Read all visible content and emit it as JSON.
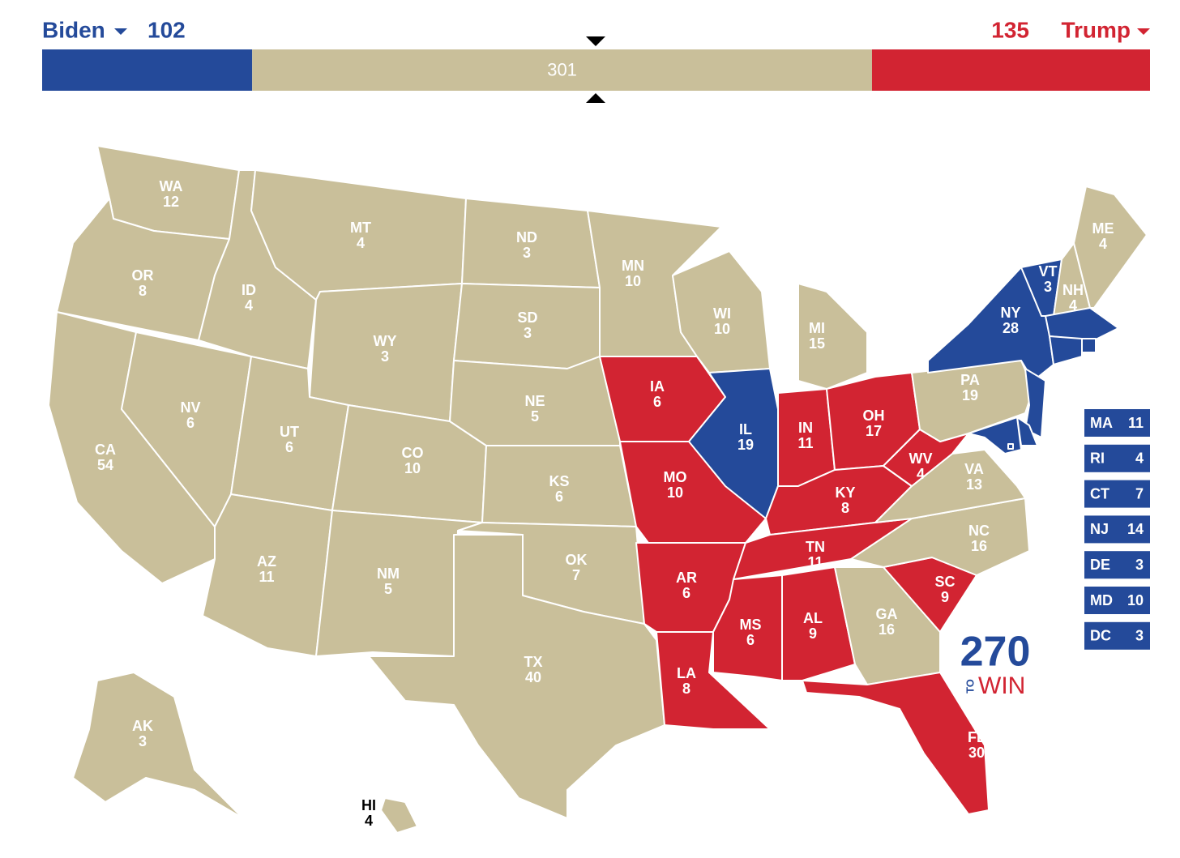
{
  "header": {
    "left": {
      "name": "Biden",
      "votes": 102,
      "color": "#244a9a"
    },
    "tossup": {
      "votes": 301,
      "color": "#c9bf9a"
    },
    "right": {
      "name": "Trump",
      "votes": 135,
      "color": "#d22432"
    }
  },
  "states": [
    {
      "abbr": "WA",
      "votes": 12,
      "color": "#c9bf9a"
    },
    {
      "abbr": "OR",
      "votes": 8,
      "color": "#c9bf9a"
    },
    {
      "abbr": "CA",
      "votes": 54,
      "color": "#c9bf9a"
    },
    {
      "abbr": "NV",
      "votes": 6,
      "color": "#c9bf9a"
    },
    {
      "abbr": "ID",
      "votes": 4,
      "color": "#c9bf9a"
    },
    {
      "abbr": "MT",
      "votes": 4,
      "color": "#c9bf9a"
    },
    {
      "abbr": "WY",
      "votes": 3,
      "color": "#c9bf9a"
    },
    {
      "abbr": "UT",
      "votes": 6,
      "color": "#c9bf9a"
    },
    {
      "abbr": "CO",
      "votes": 10,
      "color": "#c9bf9a"
    },
    {
      "abbr": "AZ",
      "votes": 11,
      "color": "#c9bf9a"
    },
    {
      "abbr": "NM",
      "votes": 5,
      "color": "#c9bf9a"
    },
    {
      "abbr": "ND",
      "votes": 3,
      "color": "#c9bf9a"
    },
    {
      "abbr": "SD",
      "votes": 3,
      "color": "#c9bf9a"
    },
    {
      "abbr": "NE",
      "votes": 5,
      "color": "#c9bf9a"
    },
    {
      "abbr": "KS",
      "votes": 6,
      "color": "#c9bf9a"
    },
    {
      "abbr": "OK",
      "votes": 7,
      "color": "#c9bf9a"
    },
    {
      "abbr": "TX",
      "votes": 40,
      "color": "#c9bf9a"
    },
    {
      "abbr": "MN",
      "votes": 10,
      "color": "#c9bf9a"
    },
    {
      "abbr": "IA",
      "votes": 6,
      "color": "#d22432"
    },
    {
      "abbr": "MO",
      "votes": 10,
      "color": "#d22432"
    },
    {
      "abbr": "AR",
      "votes": 6,
      "color": "#d22432"
    },
    {
      "abbr": "LA",
      "votes": 8,
      "color": "#d22432"
    },
    {
      "abbr": "WI",
      "votes": 10,
      "color": "#c9bf9a"
    },
    {
      "abbr": "IL",
      "votes": 19,
      "color": "#244a9a"
    },
    {
      "abbr": "MI",
      "votes": 15,
      "color": "#c9bf9a"
    },
    {
      "abbr": "IN",
      "votes": 11,
      "color": "#d22432"
    },
    {
      "abbr": "OH",
      "votes": 17,
      "color": "#d22432"
    },
    {
      "abbr": "KY",
      "votes": 8,
      "color": "#d22432"
    },
    {
      "abbr": "TN",
      "votes": 11,
      "color": "#d22432"
    },
    {
      "abbr": "MS",
      "votes": 6,
      "color": "#d22432"
    },
    {
      "abbr": "AL",
      "votes": 9,
      "color": "#d22432"
    },
    {
      "abbr": "GA",
      "votes": 16,
      "color": "#c9bf9a"
    },
    {
      "abbr": "FL",
      "votes": 30,
      "color": "#d22432"
    },
    {
      "abbr": "SC",
      "votes": 9,
      "color": "#d22432"
    },
    {
      "abbr": "NC",
      "votes": 16,
      "color": "#c9bf9a"
    },
    {
      "abbr": "VA",
      "votes": 13,
      "color": "#c9bf9a"
    },
    {
      "abbr": "WV",
      "votes": 4,
      "color": "#d22432"
    },
    {
      "abbr": "PA",
      "votes": 19,
      "color": "#c9bf9a"
    },
    {
      "abbr": "NY",
      "votes": 28,
      "color": "#244a9a"
    },
    {
      "abbr": "VT",
      "votes": 3,
      "color": "#244a9a"
    },
    {
      "abbr": "NH",
      "votes": 4,
      "color": "#c9bf9a"
    },
    {
      "abbr": "ME",
      "votes": 4,
      "color": "#c9bf9a"
    },
    {
      "abbr": "AK",
      "votes": 3,
      "color": "#c9bf9a"
    },
    {
      "abbr": "HI",
      "votes": 4,
      "color": "#c9bf9a"
    }
  ],
  "small_states": [
    {
      "abbr": "MA",
      "votes": 11,
      "color": "#244a9a"
    },
    {
      "abbr": "RI",
      "votes": 4,
      "color": "#244a9a"
    },
    {
      "abbr": "CT",
      "votes": 7,
      "color": "#244a9a"
    },
    {
      "abbr": "NJ",
      "votes": 14,
      "color": "#244a9a"
    },
    {
      "abbr": "DE",
      "votes": 3,
      "color": "#244a9a"
    },
    {
      "abbr": "MD",
      "votes": 10,
      "color": "#244a9a"
    },
    {
      "abbr": "DC",
      "votes": 3,
      "color": "#244a9a"
    }
  ],
  "logo": {
    "number": "270",
    "small": "TO",
    "word": "WIN"
  }
}
